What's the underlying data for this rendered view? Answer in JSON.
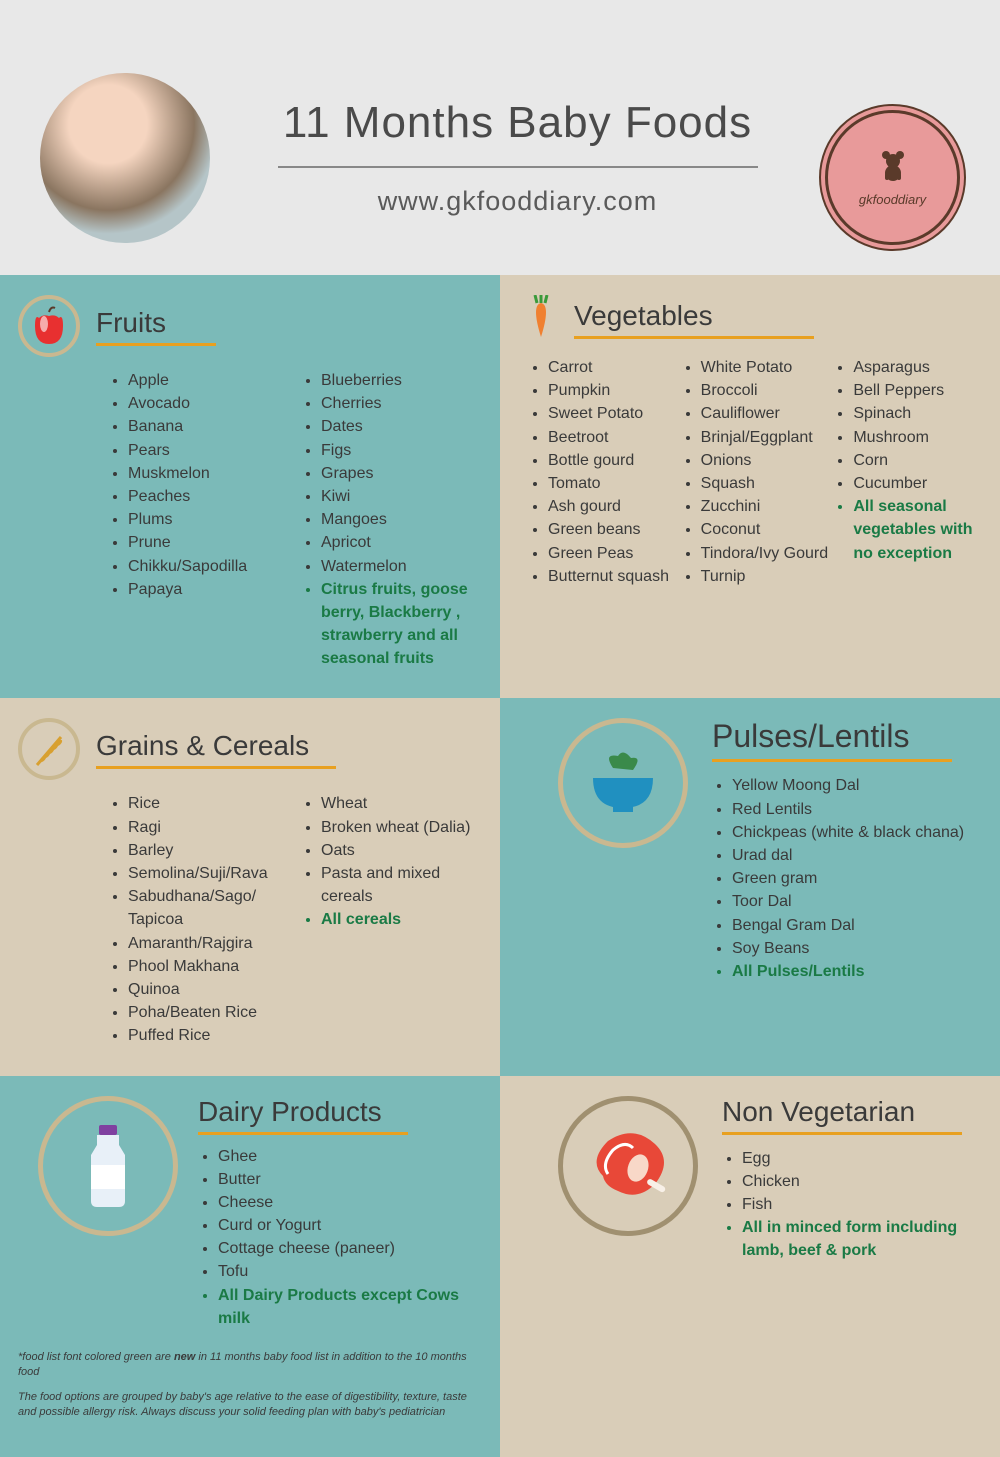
{
  "header": {
    "title": "11 Months Baby Foods",
    "url": "www.gkfooddiary.com",
    "logo_text": "gkfooddiary"
  },
  "colors": {
    "teal": "#7bbab8",
    "beige": "#d9cdb8",
    "accent_orange": "#e8a020",
    "green_highlight": "#1a7a45",
    "page_bg": "#e8e8e8",
    "text": "#3a3a3a",
    "logo_pink": "#e89a9a",
    "logo_brown": "#5a3a2a",
    "icon_ring": "#c9b890"
  },
  "sections": {
    "fruits": {
      "title": "Fruits",
      "col1": [
        "Apple",
        "Avocado",
        "Banana",
        "Pears",
        "Muskmelon",
        "Peaches",
        "Plums",
        "Prune",
        "Chikku/Sapodilla",
        "Papaya"
      ],
      "col2": [
        "Blueberries",
        "Cherries",
        "Dates",
        "Figs",
        "Grapes",
        "Kiwi",
        "Mangoes",
        "Apricot",
        "Watermelon"
      ],
      "col2_green": "Citrus fruits, goose berry, Blackberry , strawberry and all seasonal fruits"
    },
    "vegetables": {
      "title": "Vegetables",
      "col1": [
        "Carrot",
        "Pumpkin",
        "Sweet Potato",
        "Beetroot",
        "Bottle gourd",
        "Tomato",
        "Ash gourd",
        "Green beans",
        "Green Peas",
        "Butternut squash"
      ],
      "col2": [
        "White Potato",
        "Broccoli",
        "Cauliflower",
        "Brinjal/Eggplant",
        "Onions",
        "Squash",
        "Zucchini",
        "Coconut",
        "Tindora/Ivy Gourd",
        "Turnip"
      ],
      "col3": [
        "Asparagus",
        "Bell Peppers",
        "Spinach",
        "Mushroom",
        "Corn",
        "Cucumber"
      ],
      "col3_green": "All seasonal vegetables with no exception"
    },
    "grains": {
      "title": "Grains & Cereals",
      "col1": [
        "Rice",
        "Ragi",
        "Barley",
        "Semolina/Suji/Rava",
        "Sabudhana/Sago/ Tapicoa",
        "Amaranth/Rajgira",
        "Phool Makhana",
        "Quinoa",
        "Poha/Beaten Rice",
        "Puffed Rice"
      ],
      "col2": [
        "Wheat",
        "Broken wheat (Dalia)",
        " Oats",
        "Pasta and mixed cereals"
      ],
      "col2_green": "All cereals"
    },
    "pulses": {
      "title": "Pulses/Lentils",
      "items": [
        "Yellow Moong Dal",
        "Red Lentils",
        "Chickpeas (white & black chana)",
        "Urad dal",
        "Green gram",
        "Toor Dal",
        "Bengal Gram Dal",
        "Soy Beans"
      ],
      "green": "All Pulses/Lentils"
    },
    "dairy": {
      "title": "Dairy Products",
      "items": [
        "Ghee",
        "Butter",
        "Cheese",
        "Curd or Yogurt",
        "Cottage cheese (paneer)",
        "Tofu"
      ],
      "green": "All Dairy Products except Cows milk"
    },
    "nonveg": {
      "title": "Non Vegetarian",
      "items": [
        "Egg",
        "Chicken",
        "Fish"
      ],
      "green": "All in minced form including lamb, beef & pork"
    }
  },
  "footnotes": {
    "line1_a": "*food list font colored green are ",
    "line1_b": "new",
    "line1_c": " in 11 months baby food list in addition to the 10 months food",
    "line2": "The food options are grouped by baby's age relative to the ease of digestibility, texture, taste and possible allergy risk. Always discuss your solid feeding plan with baby's pediatrician"
  }
}
